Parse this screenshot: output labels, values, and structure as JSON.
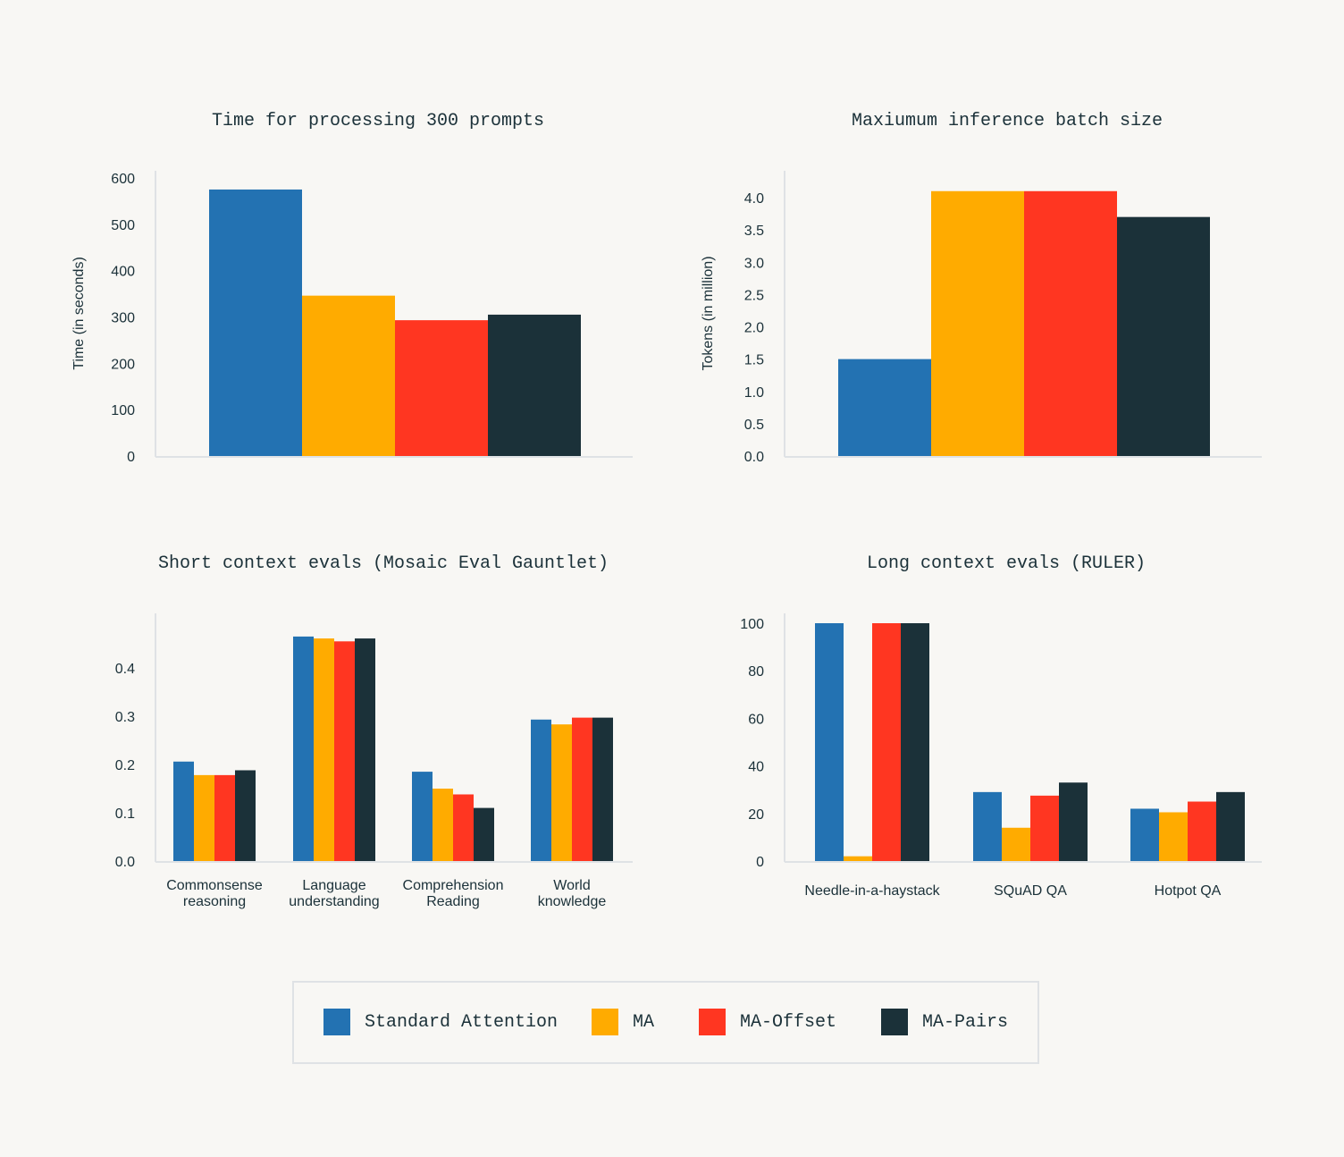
{
  "colors": {
    "background": "#F8F7F4",
    "axis": "#DFE2E5",
    "text": "#1B3139"
  },
  "legend": {
    "items": [
      {
        "label": "Standard Attention",
        "color": "#2372B2"
      },
      {
        "label": "MA",
        "color": "#FFAB00"
      },
      {
        "label": "MA-Offset",
        "color": "#FF3621"
      },
      {
        "label": "MA-Pairs",
        "color": "#1B3139"
      }
    ]
  },
  "chart_data": [
    {
      "type": "bar",
      "title": "Time for processing 300 prompts",
      "xlabel": "",
      "ylabel": "Time (in seconds)",
      "ylim": [
        0,
        600
      ],
      "yticks": [
        0,
        100,
        200,
        300,
        400,
        500,
        600
      ],
      "ytick_labels": [
        "0",
        "100",
        "200",
        "300",
        "400",
        "500",
        "600"
      ],
      "categories": [
        ""
      ],
      "series": [
        {
          "name": "Standard Attention",
          "values": [
            575
          ]
        },
        {
          "name": "MA",
          "values": [
            346
          ]
        },
        {
          "name": "MA-Offset",
          "values": [
            293
          ]
        },
        {
          "name": "MA-Pairs",
          "values": [
            305
          ]
        }
      ],
      "grid": false
    },
    {
      "type": "bar",
      "title": "Maxiumum inference batch size",
      "xlabel": "",
      "ylabel": "Tokens (in million)",
      "ylim": [
        0,
        4.0
      ],
      "yticks": [
        0,
        0.5,
        1.0,
        1.5,
        2.0,
        2.5,
        3.0,
        3.5,
        4.0
      ],
      "ytick_labels": [
        "0.0",
        "0.5",
        "1.0",
        "1.5",
        "2.0",
        "2.5",
        "3.0",
        "3.5",
        "4.0"
      ],
      "categories": [
        ""
      ],
      "series": [
        {
          "name": "Standard Attention",
          "values": [
            1.5
          ]
        },
        {
          "name": "MA",
          "values": [
            4.1
          ]
        },
        {
          "name": "MA-Offset",
          "values": [
            4.1
          ]
        },
        {
          "name": "MA-Pairs",
          "values": [
            3.7
          ]
        }
      ],
      "grid": false
    },
    {
      "type": "bar",
      "title": "Short context evals (Mosaic Eval Gauntlet)",
      "xlabel": "",
      "ylabel": "",
      "ylim": [
        0,
        0.4
      ],
      "yticks": [
        0,
        0.1,
        0.2,
        0.3,
        0.4
      ],
      "ytick_labels": [
        "0.0",
        "0.1",
        "0.2",
        "0.3",
        "0.4"
      ],
      "categories": [
        [
          "Commonsense",
          "reasoning"
        ],
        [
          "Language",
          "understanding"
        ],
        [
          "Comprehension",
          "Reading"
        ],
        [
          "World",
          "knowledge"
        ]
      ],
      "series": [
        {
          "name": "Standard Attention",
          "values": [
            0.206,
            0.465,
            0.185,
            0.293
          ]
        },
        {
          "name": "MA",
          "values": [
            0.178,
            0.461,
            0.15,
            0.283
          ]
        },
        {
          "name": "MA-Offset",
          "values": [
            0.178,
            0.455,
            0.138,
            0.297
          ]
        },
        {
          "name": "MA-Pairs",
          "values": [
            0.188,
            0.461,
            0.11,
            0.297
          ]
        }
      ],
      "grid": false
    },
    {
      "type": "bar",
      "title": "Long context evals (RULER)",
      "xlabel": "",
      "ylabel": "",
      "ylim": [
        0,
        100
      ],
      "yticks": [
        0,
        20,
        40,
        60,
        80,
        100
      ],
      "ytick_labels": [
        "0",
        "20",
        "40",
        "60",
        "80",
        "100"
      ],
      "categories": [
        [
          "Needle-in-a-haystack"
        ],
        [
          "SQuAD QA"
        ],
        [
          "Hotpot QA"
        ]
      ],
      "series": [
        {
          "name": "Standard Attention",
          "values": [
            100,
            29,
            22
          ]
        },
        {
          "name": "MA",
          "values": [
            2,
            14,
            20.5
          ]
        },
        {
          "name": "MA-Offset",
          "values": [
            100,
            27.5,
            25
          ]
        },
        {
          "name": "MA-Pairs",
          "values": [
            100,
            33,
            29
          ]
        }
      ],
      "grid": false
    }
  ]
}
